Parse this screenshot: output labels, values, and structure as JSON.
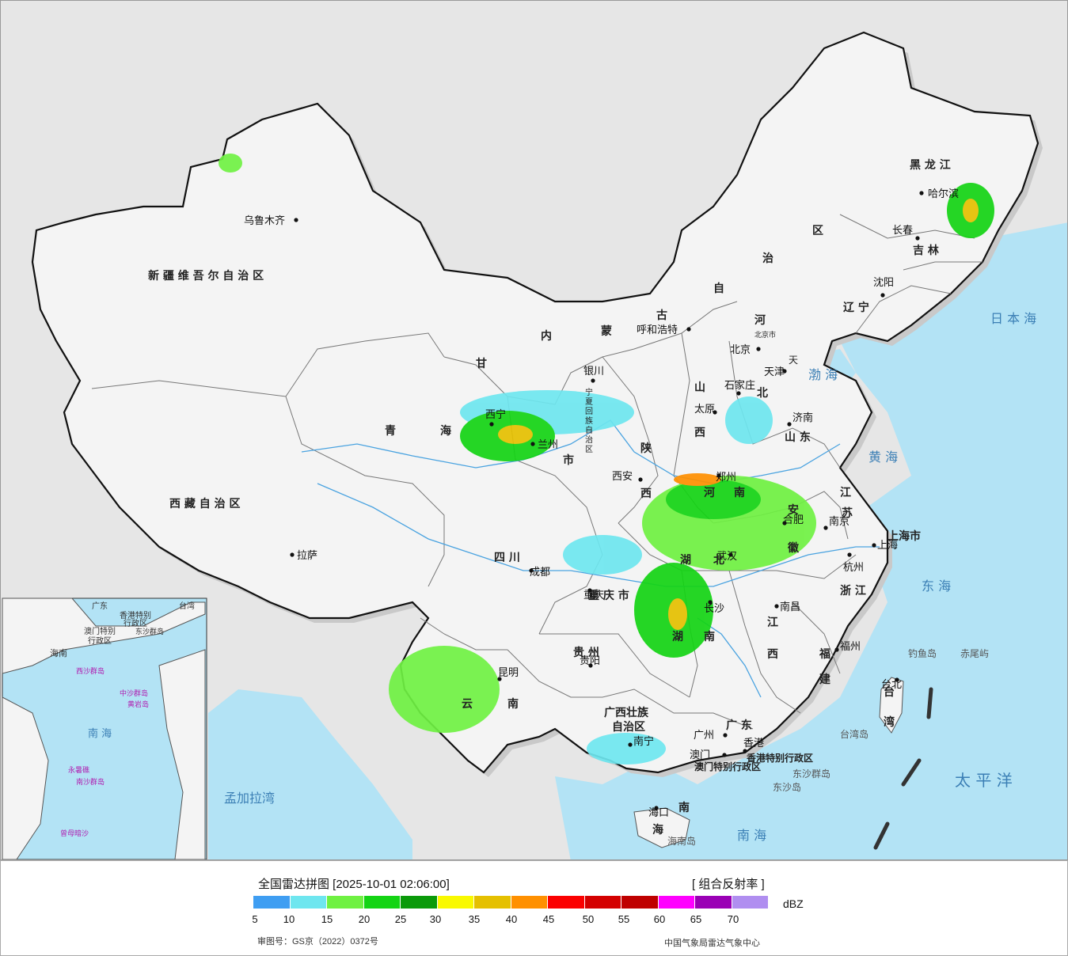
{
  "map": {
    "colors": {
      "sea": "#b3e3f5",
      "land_out": "#e4e4e4",
      "china_land": "#f4f4f4",
      "border": "#111111",
      "province_line": "#777777",
      "shadow": "#cccccc",
      "river": "#4aa3e0"
    },
    "regions": {
      "xinjiang": "新 疆 维 吾 尔 自 治 区",
      "xizang": "西 藏 自 治 区",
      "qinghai": [
        "青",
        "海"
      ],
      "gansu": "甘",
      "neimenggu": [
        "内",
        "蒙",
        "古",
        "自",
        "治",
        "区"
      ],
      "heilongjiang": "黑 龙 江",
      "jilin": "吉 林",
      "liaoning": "辽 宁",
      "hebei": [
        "河",
        "北"
      ],
      "shanxi": [
        "山",
        "西"
      ],
      "shandong": "山 东",
      "henan": [
        "河",
        "南"
      ],
      "shaanxi": [
        "陕",
        "西"
      ],
      "sichuan": "四 川",
      "chongqing": "重 庆 市",
      "hubei": [
        "湖",
        "北"
      ],
      "hunan": [
        "湖",
        "南"
      ],
      "jiangxi": [
        "江",
        "西"
      ],
      "anhui": [
        "安",
        "徽"
      ],
      "jiangsu": [
        "江",
        "苏"
      ],
      "zhejiang": "浙 江",
      "fujian": [
        "福",
        "建"
      ],
      "guizhou": "贵 州",
      "yunnan": [
        "云",
        "南"
      ],
      "guangxi": [
        "广西壮族",
        "自治区"
      ],
      "guangdong": "广 东",
      "hainan": [
        "海",
        "南"
      ],
      "taiwan": [
        "台",
        "湾"
      ],
      "ningxia": [
        "宁",
        "夏",
        "回",
        "族",
        "自",
        "治",
        "区"
      ],
      "gansu_lanzhou_shi": "市",
      "beijing_shi": "北京市",
      "tianjin_shi": "天",
      "shanghai_shi": "上海市",
      "hongkong_sar": "香港特别行政区",
      "macao_sar": "澳门特别行政区"
    },
    "cities": [
      {
        "name": "乌鲁木齐"
      },
      {
        "name": "拉萨"
      },
      {
        "name": "兰州"
      },
      {
        "name": "银川"
      },
      {
        "name": "西宁"
      },
      {
        "name": "呼和浩特"
      },
      {
        "name": "北京"
      },
      {
        "name": "天津"
      },
      {
        "name": "石家庄"
      },
      {
        "name": "太原"
      },
      {
        "name": "济南"
      },
      {
        "name": "郑州"
      },
      {
        "name": "西安"
      },
      {
        "name": "成都"
      },
      {
        "name": "重庆"
      },
      {
        "name": "武汉"
      },
      {
        "name": "合肥"
      },
      {
        "name": "南京"
      },
      {
        "name": "上海"
      },
      {
        "name": "杭州"
      },
      {
        "name": "南昌"
      },
      {
        "name": "长沙"
      },
      {
        "name": "贵阳"
      },
      {
        "name": "昆明"
      },
      {
        "name": "南宁"
      },
      {
        "name": "广州"
      },
      {
        "name": "香港"
      },
      {
        "name": "澳门"
      },
      {
        "name": "福州"
      },
      {
        "name": "台北"
      },
      {
        "name": "海口"
      },
      {
        "name": "沈阳"
      },
      {
        "name": "长春"
      },
      {
        "name": "哈尔滨"
      }
    ],
    "seas": {
      "japan_sea": "日 本 海",
      "bohai": "渤 海",
      "yellow_sea": "黄 海",
      "east_sea": "东 海",
      "south_sea": "南   海",
      "pacific": "太 平 洋",
      "bengal": "孟加拉湾"
    },
    "islands": {
      "diaoyu": "钓鱼岛",
      "chiwei": "赤尾屿",
      "taiwan_island": "台湾岛",
      "dongsha": "东沙群岛",
      "dongsha_island": "东沙岛",
      "hainan_island": "海南岛"
    },
    "inset": {
      "labels": [
        "广东",
        "香港特别",
        "行政区",
        "澳门特别",
        "行政区",
        "海南",
        "西沙群岛",
        "中沙群岛",
        "黄岩岛",
        "南   海",
        "永暑礁",
        "南沙群岛",
        "曾母暗沙",
        "东沙群岛",
        "台湾"
      ]
    }
  },
  "legend": {
    "title": "全国雷达拼图 [2025-10-01 02:06:00]",
    "product": "[ 组合反射率 ]",
    "unit": "dBZ",
    "colors": [
      "#3f9ef2",
      "#6ee6ef",
      "#6ff142",
      "#14d414",
      "#0a9a0a",
      "#f9f900",
      "#e5c000",
      "#ff9000",
      "#fb0000",
      "#d40000",
      "#bf0000",
      "#ff00ff",
      "#9a00b5",
      "#b08ef0"
    ],
    "ticks": [
      "5",
      "10",
      "15",
      "20",
      "25",
      "30",
      "35",
      "40",
      "45",
      "50",
      "55",
      "60",
      "65",
      "70"
    ],
    "approval": "审图号：GS京（2022）0372号",
    "agency": "中国气象局雷达气象中心"
  }
}
